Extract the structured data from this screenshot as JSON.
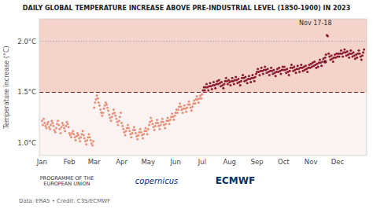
{
  "chart_data": {
    "type": "scatter",
    "title": "DAILY GLOBAL TEMPERATURE INCREASE ABOVE PRE-INDUSTRIAL LEVEL (1850-1900) IN 2023",
    "y_label": "Temperature increase (°C)",
    "credit": "Data: ERA5 • Credit: C3S/ECMWF",
    "logos": [
      "PROGRAMME OF THE\nEUROPEAN UNION",
      "copernicus",
      "ECMWF"
    ],
    "xlim": [
      -2,
      368
    ],
    "xticks": [
      {
        "value": 1,
        "label": "Jan"
      },
      {
        "value": 32,
        "label": "Feb"
      },
      {
        "value": 60,
        "label": "Mar"
      },
      {
        "value": 91,
        "label": "Apr"
      },
      {
        "value": 121,
        "label": "May"
      },
      {
        "value": 152,
        "label": "Jun"
      },
      {
        "value": 182,
        "label": "Jul"
      },
      {
        "value": 213,
        "label": "Aug"
      },
      {
        "value": 244,
        "label": "Sep"
      },
      {
        "value": 274,
        "label": "Oct"
      },
      {
        "value": 305,
        "label": "Nov"
      },
      {
        "value": 335,
        "label": "Dec"
      }
    ],
    "ylim": [
      0.88,
      2.22
    ],
    "yticks": [
      {
        "value": 1.0,
        "label": "1.0°C"
      },
      {
        "value": 1.5,
        "label": "1.5°C"
      },
      {
        "value": 2.0,
        "label": "2.0°C"
      }
    ],
    "grid": false,
    "reference_lines": [
      {
        "value": 1.5,
        "color": "#8b1a2e",
        "line_style": "dashed",
        "shade_above": true
      },
      {
        "value": 2.0,
        "color": "#aaaaaa",
        "line_style": "dotted"
      }
    ],
    "annotations": [
      {
        "text": "Nov 17-18",
        "text_x": 310,
        "text_y": 2.14,
        "x": 321,
        "y": 1.8,
        "color": "#6b0f1e"
      }
    ],
    "x": [
      1,
      2,
      3,
      4,
      5,
      6,
      7,
      8,
      9,
      10,
      11,
      12,
      13,
      14,
      15,
      16,
      17,
      18,
      19,
      20,
      21,
      22,
      23,
      24,
      25,
      26,
      27,
      28,
      29,
      30,
      31,
      32,
      33,
      34,
      35,
      36,
      37,
      38,
      39,
      40,
      41,
      42,
      43,
      44,
      45,
      46,
      47,
      48,
      49,
      50,
      51,
      52,
      53,
      54,
      55,
      56,
      57,
      58,
      59,
      60,
      61,
      62,
      63,
      64,
      65,
      66,
      67,
      68,
      69,
      70,
      71,
      72,
      73,
      74,
      75,
      76,
      77,
      78,
      79,
      80,
      81,
      82,
      83,
      84,
      85,
      86,
      87,
      88,
      89,
      90,
      91,
      92,
      93,
      94,
      95,
      96,
      97,
      98,
      99,
      100,
      101,
      102,
      103,
      104,
      105,
      106,
      107,
      108,
      109,
      110,
      111,
      112,
      113,
      114,
      115,
      116,
      117,
      118,
      119,
      120,
      121,
      122,
      123,
      124,
      125,
      126,
      127,
      128,
      129,
      130,
      131,
      132,
      133,
      134,
      135,
      136,
      137,
      138,
      139,
      140,
      141,
      142,
      143,
      144,
      145,
      146,
      147,
      148,
      149,
      150,
      151,
      152,
      153,
      154,
      155,
      156,
      157,
      158,
      159,
      160,
      161,
      162,
      163,
      164,
      165,
      166,
      167,
      168,
      169,
      170,
      171,
      172,
      173,
      174,
      175,
      176,
      177,
      178,
      179,
      180,
      181,
      182,
      183,
      184,
      185,
      186,
      187,
      188,
      189,
      190,
      191,
      192,
      193,
      194,
      195,
      196,
      197,
      198,
      199,
      200,
      201,
      202,
      203,
      204,
      205,
      206,
      207,
      208,
      209,
      210,
      211,
      212,
      213,
      214,
      215,
      216,
      217,
      218,
      219,
      220,
      221,
      222,
      223,
      224,
      225,
      226,
      227,
      228,
      229,
      230,
      231,
      232,
      233,
      234,
      235,
      236,
      237,
      238,
      239,
      240,
      241,
      242,
      243,
      244,
      245,
      246,
      247,
      248,
      249,
      250,
      251,
      252,
      253,
      254,
      255,
      256,
      257,
      258,
      259,
      260,
      261,
      262,
      263,
      264,
      265,
      266,
      267,
      268,
      269,
      270,
      271,
      272,
      273,
      274,
      275,
      276,
      277,
      278,
      279,
      280,
      281,
      282,
      283,
      284,
      285,
      286,
      287,
      288,
      289,
      290,
      291,
      292,
      293,
      294,
      295,
      296,
      297,
      298,
      299,
      300,
      301,
      302,
      303,
      304,
      305,
      306,
      307,
      308,
      309,
      310,
      311,
      312,
      313,
      314,
      315,
      316,
      317,
      318,
      319,
      320,
      321,
      322,
      323,
      324,
      325,
      326,
      327,
      328,
      329,
      330,
      331,
      332,
      333,
      334,
      335,
      336,
      337,
      338,
      339,
      340,
      341,
      342,
      343,
      344,
      345,
      346,
      347,
      348,
      349,
      350,
      351,
      352,
      353,
      354,
      355,
      356,
      357,
      358,
      359,
      360,
      361,
      362,
      363,
      364,
      365
    ],
    "values": [
      1.22,
      1.18,
      1.24,
      1.2,
      1.17,
      1.15,
      1.19,
      1.21,
      1.16,
      1.14,
      1.18,
      1.22,
      1.2,
      1.17,
      1.13,
      1.11,
      1.15,
      1.19,
      1.22,
      1.18,
      1.14,
      1.1,
      1.16,
      1.2,
      1.18,
      1.15,
      1.12,
      1.17,
      1.21,
      1.19,
      1.16,
      1.1,
      1.08,
      1.06,
      1.1,
      1.12,
      1.09,
      1.06,
      1.03,
      1.07,
      1.1,
      1.08,
      1.05,
      1.02,
      1.06,
      1.09,
      1.12,
      1.08,
      1.05,
      1.02,
      0.99,
      1.03,
      1.06,
      1.09,
      1.06,
      1.03,
      1.0,
      0.98,
      1.02,
      1.35,
      1.4,
      1.43,
      1.47,
      1.44,
      1.4,
      1.37,
      1.33,
      1.3,
      1.27,
      1.3,
      1.34,
      1.37,
      1.4,
      1.38,
      1.35,
      1.32,
      1.28,
      1.25,
      1.22,
      1.26,
      1.29,
      1.33,
      1.3,
      1.27,
      1.24,
      1.21,
      1.18,
      1.22,
      1.26,
      1.3,
      1.2,
      1.17,
      1.14,
      1.11,
      1.08,
      1.12,
      1.15,
      1.18,
      1.15,
      1.12,
      1.09,
      1.06,
      1.1,
      1.13,
      1.16,
      1.13,
      1.1,
      1.07,
      1.04,
      1.08,
      1.11,
      1.14,
      1.11,
      1.08,
      1.05,
      1.09,
      1.12,
      1.15,
      1.12,
      1.09,
      1.14,
      1.18,
      1.21,
      1.25,
      1.22,
      1.19,
      1.16,
      1.13,
      1.17,
      1.2,
      1.23,
      1.2,
      1.17,
      1.14,
      1.18,
      1.21,
      1.24,
      1.21,
      1.18,
      1.15,
      1.19,
      1.22,
      1.25,
      1.22,
      1.19,
      1.23,
      1.26,
      1.29,
      1.26,
      1.23,
      1.27,
      1.3,
      1.33,
      1.3,
      1.33,
      1.36,
      1.39,
      1.36,
      1.33,
      1.3,
      1.34,
      1.37,
      1.34,
      1.31,
      1.35,
      1.38,
      1.41,
      1.38,
      1.35,
      1.32,
      1.36,
      1.39,
      1.42,
      1.39,
      1.43,
      1.46,
      1.43,
      1.4,
      1.44,
      1.47,
      1.44,
      1.48,
      1.52,
      1.55,
      1.52,
      1.55,
      1.58,
      1.55,
      1.52,
      1.56,
      1.59,
      1.56,
      1.53,
      1.57,
      1.6,
      1.57,
      1.54,
      1.58,
      1.61,
      1.58,
      1.62,
      1.59,
      1.56,
      1.6,
      1.57,
      1.54,
      1.58,
      1.61,
      1.64,
      1.61,
      1.58,
      1.62,
      1.6,
      1.57,
      1.61,
      1.64,
      1.61,
      1.58,
      1.62,
      1.65,
      1.62,
      1.59,
      1.63,
      1.6,
      1.57,
      1.61,
      1.64,
      1.67,
      1.64,
      1.61,
      1.65,
      1.62,
      1.59,
      1.63,
      1.66,
      1.63,
      1.6,
      1.64,
      1.67,
      1.64,
      1.61,
      1.65,
      1.68,
      1.7,
      1.73,
      1.7,
      1.67,
      1.71,
      1.74,
      1.71,
      1.68,
      1.72,
      1.75,
      1.72,
      1.69,
      1.73,
      1.7,
      1.67,
      1.71,
      1.74,
      1.71,
      1.68,
      1.72,
      1.69,
      1.66,
      1.7,
      1.73,
      1.7,
      1.74,
      1.71,
      1.68,
      1.72,
      1.75,
      1.72,
      1.75,
      1.72,
      1.69,
      1.73,
      1.7,
      1.67,
      1.71,
      1.74,
      1.77,
      1.74,
      1.71,
      1.75,
      1.72,
      1.69,
      1.73,
      1.76,
      1.73,
      1.7,
      1.74,
      1.77,
      1.74,
      1.71,
      1.75,
      1.72,
      1.76,
      1.73,
      1.7,
      1.74,
      1.77,
      1.74,
      1.78,
      1.75,
      1.79,
      1.76,
      1.8,
      1.77,
      1.74,
      1.78,
      1.75,
      1.79,
      1.82,
      1.79,
      1.76,
      1.8,
      1.83,
      1.8,
      1.84,
      1.87,
      2.06,
      2.05,
      1.88,
      1.85,
      1.82,
      1.86,
      1.83,
      1.8,
      1.84,
      1.87,
      1.84,
      1.88,
      1.85,
      1.88,
      1.85,
      1.88,
      1.91,
      1.88,
      1.85,
      1.89,
      1.92,
      1.89,
      1.86,
      1.9,
      1.87,
      1.84,
      1.88,
      1.91,
      1.88,
      1.85,
      1.89,
      1.86,
      1.83,
      1.87,
      1.84,
      1.88,
      1.91,
      1.88,
      1.85,
      1.82,
      1.86,
      1.89,
      1.92
    ],
    "colors": [
      "#e8917a",
      "#e8917a",
      "#e8917a",
      "#e8917a",
      "#e8917a",
      "#e8917a",
      "#e8917a",
      "#e8917a",
      "#e8917a",
      "#e8917a",
      "#e8917a",
      "#e8917a",
      "#e8917a",
      "#e8917a",
      "#e8917a",
      "#e8917a",
      "#e8917a",
      "#e8917a",
      "#e8917a",
      "#e8917a",
      "#e8917a",
      "#e8917a",
      "#e8917a",
      "#e8917a",
      "#e8917a",
      "#e8917a",
      "#e8917a",
      "#e8917a",
      "#e8917a",
      "#e8917a",
      "#e8917a",
      "#e8917a",
      "#e8917a",
      "#e8917a",
      "#e8917a",
      "#e8917a",
      "#e8917a",
      "#e8917a",
      "#e8917a",
      "#e8917a",
      "#e8917a",
      "#e8917a",
      "#e8917a",
      "#e8917a",
      "#e8917a",
      "#e8917a",
      "#e8917a",
      "#e8917a",
      "#e8917a",
      "#e8917a",
      "#e8917a",
      "#e8917a",
      "#e8917a",
      "#e8917a",
      "#e8917a",
      "#e8917a",
      "#e8917a",
      "#e8917a",
      "#e8917a",
      "#e8917a",
      "#e8917a",
      "#e8917a",
      "#e8917a",
      "#e8917a",
      "#e8917a",
      "#e8917a",
      "#e8917a",
      "#e8917a",
      "#e8917a",
      "#e8917a",
      "#e8917a",
      "#e8917a",
      "#e8917a",
      "#e8917a",
      "#e8917a",
      "#e8917a",
      "#e8917a",
      "#e8917a",
      "#e8917a",
      "#e8917a",
      "#e8917a",
      "#e8917a",
      "#e8917a",
      "#e8917a",
      "#e8917a",
      "#e8917a",
      "#e8917a",
      "#e8917a",
      "#e8917a",
      "#e8917a",
      "#e8917a",
      "#e8917a",
      "#e8917a",
      "#e8917a",
      "#e8917a",
      "#e8917a",
      "#e8917a",
      "#e8917a",
      "#e8917a",
      "#e8917a",
      "#e8917a",
      "#e8917a",
      "#e8917a",
      "#e8917a",
      "#e8917a",
      "#e8917a",
      "#e8917a",
      "#e8917a",
      "#e8917a",
      "#e8917a",
      "#e8917a",
      "#e8917a",
      "#e8917a",
      "#e8917a",
      "#e8917a",
      "#e8917a",
      "#e8917a",
      "#e8917a",
      "#e8917a",
      "#e8917a",
      "#e8917a",
      "#e8917a",
      "#e8917a",
      "#e8917a",
      "#e8917a",
      "#e8917a",
      "#e8917a",
      "#e8917a",
      "#e8917a",
      "#e8917a",
      "#e8917a",
      "#e8917a",
      "#e8917a",
      "#e8917a",
      "#e8917a",
      "#e8917a",
      "#e8917a",
      "#e8917a",
      "#e8917a",
      "#e8917a",
      "#e8917a",
      "#e8917a",
      "#e8917a",
      "#e8917a",
      "#e8917a",
      "#e8917a",
      "#e8917a",
      "#e8917a",
      "#e8917a",
      "#e8917a",
      "#e8917a",
      "#e8917a",
      "#e8917a",
      "#e8917a",
      "#e8917a",
      "#e8917a",
      "#e8917a",
      "#e8917a",
      "#e8917a",
      "#e8917a",
      "#e8917a",
      "#e8917a",
      "#e8917a",
      "#e8917a",
      "#e8917a",
      "#e8917a",
      "#e8917a",
      "#e8917a",
      "#e8917a",
      "#e8917a",
      "#e8917a",
      "#e8917a",
      "#e8917a",
      "#e8917a",
      "#e8917a",
      "#e8917a",
      "#e8917a",
      "#e8917a",
      "#e8917a",
      "#e8917a",
      "#e8917a",
      "#e8917a",
      "#8b1a2e",
      "#8b1a2e",
      "#8b1a2e",
      "#8b1a2e",
      "#8b1a2e",
      "#8b1a2e",
      "#8b1a2e",
      "#8b1a2e",
      "#8b1a2e",
      "#8b1a2e",
      "#8b1a2e",
      "#8b1a2e",
      "#8b1a2e",
      "#8b1a2e",
      "#8b1a2e",
      "#8b1a2e",
      "#8b1a2e",
      "#8b1a2e",
      "#8b1a2e",
      "#8b1a2e",
      "#8b1a2e",
      "#8b1a2e",
      "#8b1a2e",
      "#8b1a2e",
      "#8b1a2e",
      "#8b1a2e",
      "#8b1a2e",
      "#8b1a2e",
      "#8b1a2e",
      "#8b1a2e",
      "#8b1a2e",
      "#8b1a2e",
      "#8b1a2e",
      "#8b1a2e",
      "#8b1a2e",
      "#8b1a2e",
      "#8b1a2e",
      "#8b1a2e",
      "#8b1a2e",
      "#8b1a2e",
      "#8b1a2e",
      "#8b1a2e",
      "#8b1a2e",
      "#8b1a2e",
      "#8b1a2e",
      "#8b1a2e",
      "#8b1a2e",
      "#8b1a2e",
      "#8b1a2e",
      "#8b1a2e",
      "#8b1a2e",
      "#8b1a2e",
      "#8b1a2e",
      "#8b1a2e",
      "#8b1a2e",
      "#8b1a2e",
      "#8b1a2e",
      "#8b1a2e",
      "#8b1a2e",
      "#8b1a2e",
      "#8b1a2e",
      "#8b1a2e",
      "#8b1a2e",
      "#8b1a2e",
      "#8b1a2e",
      "#8b1a2e",
      "#8b1a2e",
      "#8b1a2e",
      "#8b1a2e",
      "#8b1a2e",
      "#8b1a2e",
      "#8b1a2e",
      "#8b1a2e",
      "#8b1a2e",
      "#8b1a2e",
      "#8b1a2e",
      "#8b1a2e",
      "#8b1a2e",
      "#8b1a2e",
      "#8b1a2e",
      "#8b1a2e",
      "#8b1a2e",
      "#8b1a2e",
      "#8b1a2e",
      "#8b1a2e",
      "#8b1a2e",
      "#8b1a2e",
      "#8b1a2e",
      "#8b1a2e",
      "#8b1a2e",
      "#8b1a2e",
      "#8b1a2e",
      "#8b1a2e",
      "#8b1a2e",
      "#8b1a2e",
      "#8b1a2e",
      "#8b1a2e",
      "#8b1a2e",
      "#8b1a2e",
      "#8b1a2e",
      "#8b1a2e",
      "#8b1a2e",
      "#8b1a2e",
      "#8b1a2e",
      "#8b1a2e",
      "#8b1a2e",
      "#8b1a2e",
      "#8b1a2e",
      "#8b1a2e",
      "#8b1a2e",
      "#8b1a2e",
      "#8b1a2e",
      "#8b1a2e",
      "#8b1a2e",
      "#8b1a2e",
      "#8b1a2e",
      "#8b1a2e",
      "#8b1a2e",
      "#8b1a2e",
      "#8b1a2e",
      "#8b1a2e",
      "#8b1a2e",
      "#8b1a2e",
      "#8b1a2e",
      "#8b1a2e",
      "#8b1a2e",
      "#8b1a2e",
      "#8b1a2e",
      "#8b1a2e",
      "#8b1a2e",
      "#8b1a2e",
      "#8b1a2e",
      "#8b1a2e",
      "#8b1a2e",
      "#8b1a2e",
      "#8b1a2e",
      "#8b1a2e",
      "#8b1a2e",
      "#8b1a2e",
      "#8b1a2e",
      "#8b1a2e",
      "#8b1a2e",
      "#8b1a2e",
      "#8b1a2e",
      "#8b1a2e",
      "#8b1a2e",
      "#8b1a2e",
      "#8b1a2e",
      "#8b1a2e",
      "#8b1a2e",
      "#8b1a2e",
      "#8b1a2e",
      "#8b1a2e",
      "#8b1a2e",
      "#8b1a2e",
      "#8b1a2e",
      "#8b1a2e",
      "#8b1a2e",
      "#8b1a2e",
      "#8b1a2e",
      "#8b1a2e",
      "#8b1a2e",
      "#8b1a2e",
      "#8b1a2e",
      "#8b1a2e",
      "#8b1a2e",
      "#8b1a2e",
      "#8b1a2e",
      "#8b1a2e",
      "#8b1a2e",
      "#8b1a2e",
      "#8b1a2e",
      "#8b1a2e",
      "#8b1a2e",
      "#8b1a2e",
      "#8b1a2e",
      "#8b1a2e",
      "#8b1a2e",
      "#8b1a2e",
      "#8b1a2e",
      "#8b1a2e",
      "#8b1a2e",
      "#8b1a2e"
    ]
  }
}
